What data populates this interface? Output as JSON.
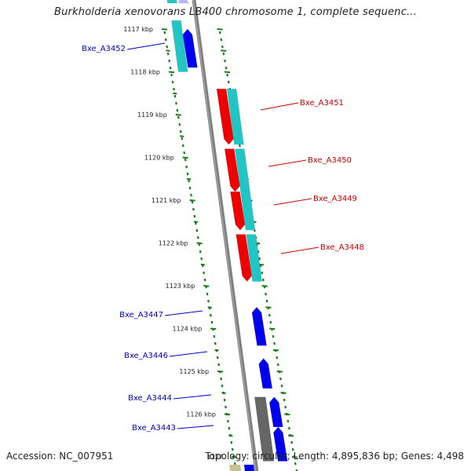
{
  "map": {
    "title": "Burkholderia xenovorans LB400 chromosome 1, complete sequenc...",
    "accession": "Accession: NC_007951",
    "summary": "Topology: circular; Length: 4,895,836 bp; Genes: 4,498",
    "colors": {
      "backbone": "#808080",
      "ruler": "#1a7d1a",
      "forward": "#0000ee",
      "reverse": "#ee0000",
      "cds_box": "#22c4c4",
      "pseudo": "#666666",
      "forward_label": "#0000cc",
      "reverse_label": "#cc0000"
    },
    "ruler_labels": [
      "1117 kbp",
      "1118 kbp",
      "1119 kbp",
      "1120 kbp",
      "1121 kbp",
      "1122 kbp",
      "1123 kbp",
      "1124 kbp",
      "1125 kbp",
      "1126 kbp",
      "1127"
    ],
    "genes": [
      {
        "label": "",
        "strand": "forward",
        "start_kbp": 1116.6,
        "end_kbp": 1117.7,
        "cds": true,
        "pseudo": false
      },
      {
        "label": "Bxe_A3452",
        "strand": "forward",
        "start_kbp": 1117.0,
        "end_kbp": 1117.9,
        "cds": true,
        "pseudo": false
      },
      {
        "label": "Bxe_A3451",
        "strand": "reverse",
        "start_kbp": 1118.4,
        "end_kbp": 1119.7,
        "cds": true,
        "pseudo": false
      },
      {
        "label": "Bxe_A3450",
        "strand": "reverse",
        "start_kbp": 1119.8,
        "end_kbp": 1120.8,
        "cds": true,
        "pseudo": false
      },
      {
        "label": "Bxe_A3449",
        "strand": "reverse",
        "start_kbp": 1120.8,
        "end_kbp": 1121.7,
        "cds": true,
        "pseudo": false
      },
      {
        "label": "Bxe_A3448",
        "strand": "reverse",
        "start_kbp": 1121.8,
        "end_kbp": 1122.9,
        "cds": true,
        "pseudo": false
      },
      {
        "label": "Bxe_A3447",
        "strand": "forward",
        "start_kbp": 1123.5,
        "end_kbp": 1124.4,
        "cds": false,
        "pseudo": false
      },
      {
        "label": "Bxe_A3446",
        "strand": "forward",
        "start_kbp": 1124.7,
        "end_kbp": 1125.4,
        "cds": false,
        "pseudo": false
      },
      {
        "label": "Bxe_A3444",
        "strand": "forward",
        "start_kbp": 1125.6,
        "end_kbp": 1126.3,
        "cds": false,
        "pseudo": true
      },
      {
        "label": "Bxe_A3443",
        "strand": "forward",
        "start_kbp": 1126.3,
        "end_kbp": 1127.1,
        "cds": false,
        "pseudo": true
      }
    ]
  }
}
